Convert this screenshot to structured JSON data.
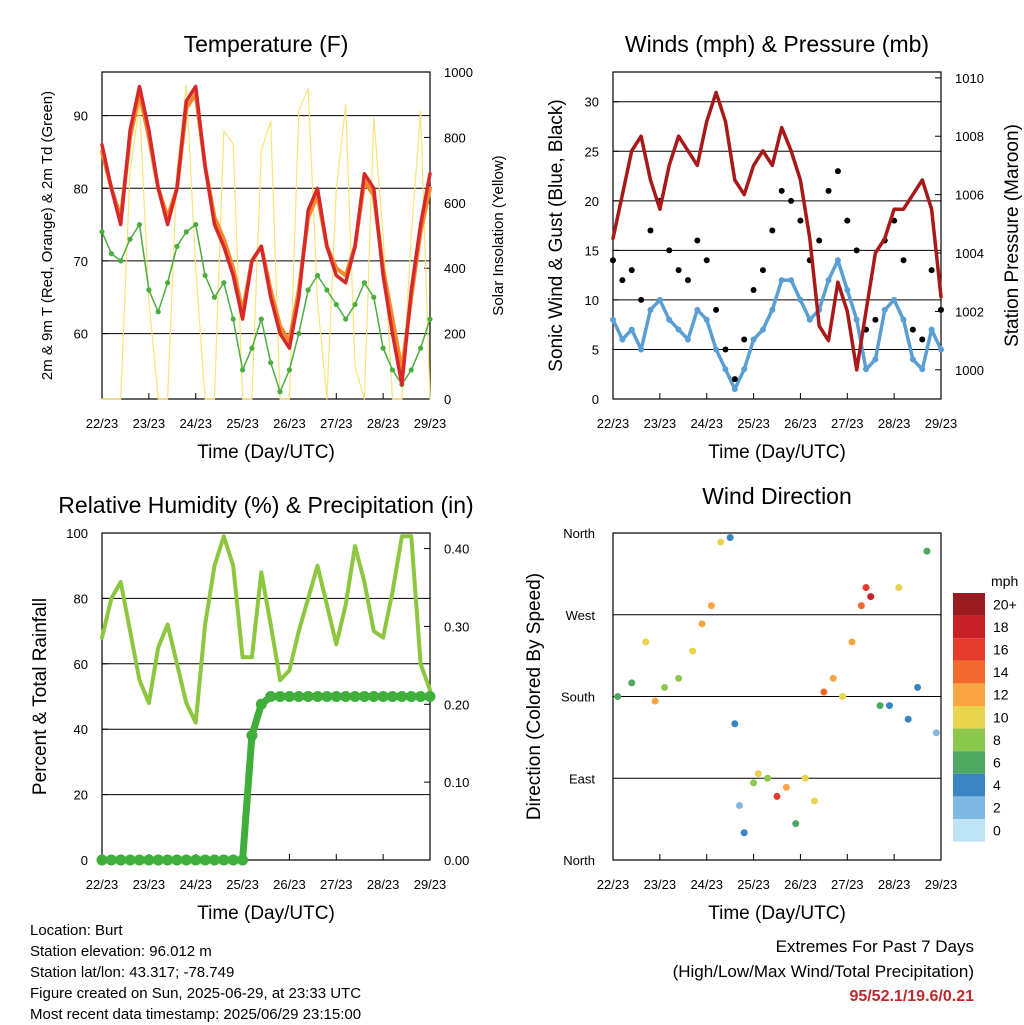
{
  "x_ticks": [
    "22/23",
    "23/23",
    "24/23",
    "25/23",
    "26/23",
    "27/23",
    "28/23",
    "29/23"
  ],
  "x_axis_label": "Time (Day/UTC)",
  "colors": {
    "temp_2m": "#d7282a",
    "temp_9m": "#f4892a",
    "dewpoint": "#4cad3f",
    "solar": "#f8e37a",
    "wind": "#5a9fd4",
    "gust": "#000000",
    "pressure": "#a8191a",
    "rh": "#8dc63f",
    "precip": "#3fae3a"
  },
  "panels": {
    "temperature": {
      "title": "Temperature (F)",
      "ylabel_left": "2m & 9m T (Red, Orange) & 2m Td (Green)",
      "ylabel_right": "Solar Insolation (Yellow)",
      "yticks_left": [
        "60",
        "70",
        "80",
        "90"
      ],
      "yticks_right": [
        "0",
        "200",
        "400",
        "600",
        "800",
        "1000"
      ]
    },
    "winds": {
      "title": "Winds (mph) & Pressure (mb)",
      "ylabel_left": "Sonic Wind & Gust (Blue, Black)",
      "ylabel_right": "Station Pressure (Maroon)",
      "yticks_left": [
        "0",
        "5",
        "10",
        "15",
        "20",
        "25",
        "30"
      ],
      "yticks_right": [
        "1000",
        "1002",
        "1004",
        "1006",
        "1008",
        "1010"
      ]
    },
    "humidity": {
      "title": "Relative Humidity (%) & Precipitation (in)",
      "ylabel_left": "Percent & Total Rainfall",
      "yticks_left": [
        "0",
        "20",
        "40",
        "60",
        "80",
        "100"
      ],
      "yticks_right": [
        "0.00",
        "0.10",
        "0.20",
        "0.30",
        "0.40"
      ]
    },
    "direction": {
      "title": "Wind Direction",
      "ylabel_left": "Direction (Colored By Speed)",
      "yticks_left": [
        "North",
        "East",
        "South",
        "West",
        "North"
      ],
      "legend_title": "mph",
      "legend_labels": [
        "20+",
        "18",
        "16",
        "14",
        "12",
        "10",
        "8",
        "6",
        "4",
        "2",
        "0"
      ],
      "legend_colors": [
        "#9b1c20",
        "#c62127",
        "#e53a2c",
        "#f26a2e",
        "#f9a541",
        "#e8d44d",
        "#8cc84b",
        "#4ea862",
        "#3a84c2",
        "#7fb8e2",
        "#bde3f5"
      ]
    }
  },
  "chart_data": [
    {
      "type": "line",
      "panel": "temperature",
      "title": "Temperature (F)",
      "xlabel": "Time (Day/UTC)",
      "ylabel": "2m & 9m T (Red, Orange) & 2m Td (Green)",
      "y2label": "Solar Insolation (Yellow)",
      "x": [
        0,
        0.2,
        0.4,
        0.6,
        0.8,
        1,
        1.2,
        1.4,
        1.6,
        1.8,
        2,
        2.2,
        2.4,
        2.6,
        2.8,
        3,
        3.2,
        3.4,
        3.6,
        3.8,
        4,
        4.2,
        4.4,
        4.6,
        4.8,
        5,
        5.2,
        5.4,
        5.6,
        5.8,
        6,
        6.2,
        6.4,
        6.6,
        6.8,
        7
      ],
      "ylim": [
        51,
        96
      ],
      "y2lim": [
        0,
        1000
      ],
      "series": [
        {
          "name": "2m T",
          "axis": "left",
          "values": [
            86,
            80,
            75,
            88,
            94,
            88,
            80,
            75,
            80,
            92,
            94,
            83,
            75,
            72,
            68,
            62,
            70,
            72,
            65,
            60,
            58,
            65,
            77,
            80,
            72,
            68,
            67,
            72,
            82,
            80,
            68,
            60,
            53,
            66,
            75,
            82
          ]
        },
        {
          "name": "9m T",
          "axis": "left",
          "values": [
            85,
            80,
            76,
            87,
            93,
            87,
            80,
            76,
            80,
            91,
            93,
            83,
            76,
            73,
            69,
            63,
            70,
            72,
            66,
            61,
            59,
            66,
            76,
            79,
            72,
            69,
            68,
            72,
            81,
            79,
            69,
            62,
            55,
            65,
            74,
            80
          ]
        },
        {
          "name": "2m Td",
          "axis": "left",
          "values": [
            74,
            71,
            70,
            73,
            75,
            66,
            63,
            67,
            72,
            74,
            75,
            68,
            65,
            67,
            62,
            55,
            58,
            62,
            56,
            52,
            55,
            60,
            66,
            68,
            66,
            64,
            62,
            64,
            67,
            65,
            58,
            55,
            53,
            55,
            58,
            62
          ]
        },
        {
          "name": "Solar",
          "axis": "right",
          "values": [
            0,
            0,
            0,
            700,
            900,
            300,
            0,
            0,
            700,
            960,
            400,
            0,
            0,
            820,
            780,
            0,
            0,
            760,
            850,
            0,
            0,
            880,
            950,
            300,
            0,
            640,
            900,
            100,
            0,
            860,
            500,
            0,
            0,
            500,
            880,
            0
          ]
        }
      ]
    },
    {
      "type": "line",
      "panel": "winds",
      "title": "Winds (mph) & Pressure (mb)",
      "xlabel": "Time (Day/UTC)",
      "ylabel": "Sonic Wind & Gust (Blue, Black)",
      "y2label": "Station Pressure (Maroon)",
      "x": [
        0,
        0.2,
        0.4,
        0.6,
        0.8,
        1,
        1.2,
        1.4,
        1.6,
        1.8,
        2,
        2.2,
        2.4,
        2.6,
        2.8,
        3,
        3.2,
        3.4,
        3.6,
        3.8,
        4,
        4.2,
        4.4,
        4.6,
        4.8,
        5,
        5.2,
        5.4,
        5.6,
        5.8,
        6,
        6.2,
        6.4,
        6.6,
        6.8,
        7
      ],
      "ylim": [
        0,
        33
      ],
      "y2lim": [
        999,
        1010.2
      ],
      "series": [
        {
          "name": "Wind",
          "axis": "left",
          "values": [
            8,
            6,
            7,
            5,
            9,
            10,
            8,
            7,
            6,
            9,
            8,
            5,
            3,
            1,
            3,
            6,
            7,
            9,
            12,
            12,
            10,
            8,
            9,
            12,
            14,
            11,
            8,
            3,
            4,
            9,
            10,
            8,
            4,
            3,
            7,
            5
          ]
        },
        {
          "name": "Gust",
          "axis": "left",
          "values": [
            14,
            12,
            13,
            10,
            17,
            20,
            15,
            13,
            12,
            16,
            14,
            9,
            5,
            2,
            6,
            11,
            13,
            17,
            21,
            20,
            18,
            14,
            16,
            21,
            23,
            18,
            15,
            7,
            8,
            16,
            18,
            14,
            7,
            6,
            13,
            9
          ]
        },
        {
          "name": "Pressure",
          "axis": "right",
          "values": [
            1004.5,
            1006,
            1007.5,
            1008,
            1006.5,
            1005.5,
            1007,
            1008,
            1007.5,
            1007,
            1008.5,
            1009.5,
            1008.5,
            1006.5,
            1006,
            1007,
            1007.5,
            1007,
            1008.3,
            1007.5,
            1006.5,
            1004.5,
            1001.5,
            1001,
            1003,
            1002,
            1000,
            1002,
            1004,
            1004.5,
            1005.5,
            1005.5,
            1006,
            1006.5,
            1005.5,
            1002.5
          ]
        }
      ]
    },
    {
      "type": "line",
      "panel": "humidity",
      "title": "Relative Humidity (%) & Precipitation (in)",
      "xlabel": "Time (Day/UTC)",
      "ylabel": "Percent & Total Rainfall",
      "x": [
        0,
        0.2,
        0.4,
        0.6,
        0.8,
        1,
        1.2,
        1.4,
        1.6,
        1.8,
        2,
        2.2,
        2.4,
        2.6,
        2.8,
        3,
        3.2,
        3.4,
        3.6,
        3.8,
        4,
        4.2,
        4.4,
        4.6,
        4.8,
        5,
        5.2,
        5.4,
        5.6,
        5.8,
        6,
        6.2,
        6.4,
        6.6,
        6.8,
        7
      ],
      "ylim": [
        0,
        100
      ],
      "y2lim": [
        0,
        0.42
      ],
      "series": [
        {
          "name": "Relative Humidity",
          "axis": "left",
          "values": [
            68,
            80,
            85,
            70,
            55,
            48,
            65,
            72,
            60,
            48,
            42,
            72,
            90,
            99,
            90,
            62,
            62,
            88,
            72,
            55,
            58,
            70,
            80,
            90,
            78,
            66,
            78,
            96,
            85,
            70,
            68,
            82,
            99,
            99,
            60,
            52
          ]
        },
        {
          "name": "Total Precipitation",
          "axis": "right",
          "values": [
            0,
            0,
            0,
            0,
            0,
            0,
            0,
            0,
            0,
            0,
            0,
            0,
            0,
            0,
            0,
            0,
            0.16,
            0.2,
            0.21,
            0.21,
            0.21,
            0.21,
            0.21,
            0.21,
            0.21,
            0.21,
            0.21,
            0.21,
            0.21,
            0.21,
            0.21,
            0.21,
            0.21,
            0.21,
            0.21,
            0.21
          ]
        }
      ]
    },
    {
      "type": "scatter",
      "panel": "direction",
      "title": "Wind Direction",
      "xlabel": "Time (Day/UTC)",
      "ylabel": "Direction (Colored By Speed)",
      "yticks": [
        "North",
        "East",
        "South",
        "West",
        "North"
      ],
      "ylim": [
        0,
        360
      ],
      "x": [
        0.1,
        0.4,
        0.7,
        0.9,
        1.1,
        1.4,
        1.7,
        1.9,
        2.1,
        2.3,
        2.5,
        2.6,
        2.7,
        2.8,
        3,
        3.1,
        3.3,
        3.5,
        3.7,
        3.9,
        4.1,
        4.3,
        4.5,
        4.7,
        4.9,
        5.1,
        5.3,
        5.4,
        5.5,
        5.7,
        5.9,
        6.1,
        6.3,
        6.5,
        6.7,
        6.9
      ],
      "values": [
        180,
        195,
        240,
        175,
        190,
        200,
        230,
        260,
        280,
        350,
        355,
        150,
        60,
        30,
        85,
        95,
        90,
        70,
        80,
        40,
        90,
        65,
        185,
        200,
        180,
        240,
        280,
        300,
        290,
        170,
        170,
        300,
        155,
        190,
        340,
        140
      ],
      "speed": [
        5,
        6,
        9,
        12,
        7,
        8,
        9,
        11,
        12,
        10,
        4,
        3,
        2,
        4,
        8,
        10,
        7,
        15,
        12,
        6,
        9,
        10,
        13,
        11,
        10,
        12,
        14,
        16,
        17,
        5,
        3,
        10,
        4,
        3,
        5,
        2
      ]
    }
  ],
  "info_left": {
    "location": "Location: Burt",
    "elevation": "Station elevation: 96.012 m",
    "latlon": "Station lat/lon: 43.317; -78.749",
    "created": "Figure created on Sun, 2025-06-29, at 23:33 UTC",
    "timestamp": "Most recent data timestamp: 2025/06/29 23:15:00"
  },
  "info_right": {
    "line1": "Extremes For Past 7 Days",
    "line2": "(High/Low/Max Wind/Total Precipitation)",
    "values": "95/52.1/19.6/0.21"
  }
}
